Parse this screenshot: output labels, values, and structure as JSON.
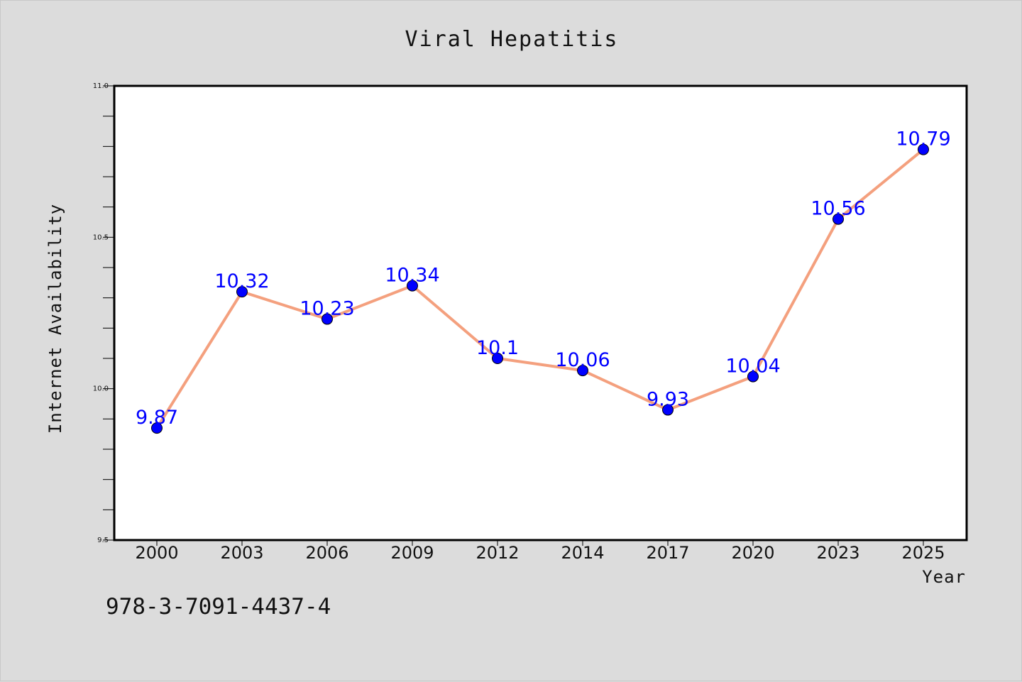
{
  "chart_data": {
    "type": "line",
    "title": "Viral Hepatitis",
    "xlabel": "Year",
    "ylabel": "Internet Availability",
    "categories": [
      "2000",
      "2003",
      "2006",
      "2009",
      "2012",
      "2014",
      "2017",
      "2020",
      "2023",
      "2025"
    ],
    "values": [
      9.87,
      10.32,
      10.23,
      10.34,
      10.1,
      10.06,
      9.93,
      10.04,
      10.56,
      10.79
    ],
    "data_labels": [
      "9.87",
      "10.32",
      "10.23",
      "10.34",
      "10.1",
      "10.06",
      "9.93",
      "10.04",
      "10.56",
      "10.79"
    ],
    "ylim": [
      9.5,
      11.0
    ],
    "yticks": [
      "9.5",
      "10.0",
      "10.5",
      "11.0"
    ],
    "grid": false,
    "line_color": "#f4a07e",
    "marker_color": "#0000ff",
    "label_color": "#0000ff"
  },
  "footer": {
    "code": "978-3-7091-4437-4"
  }
}
